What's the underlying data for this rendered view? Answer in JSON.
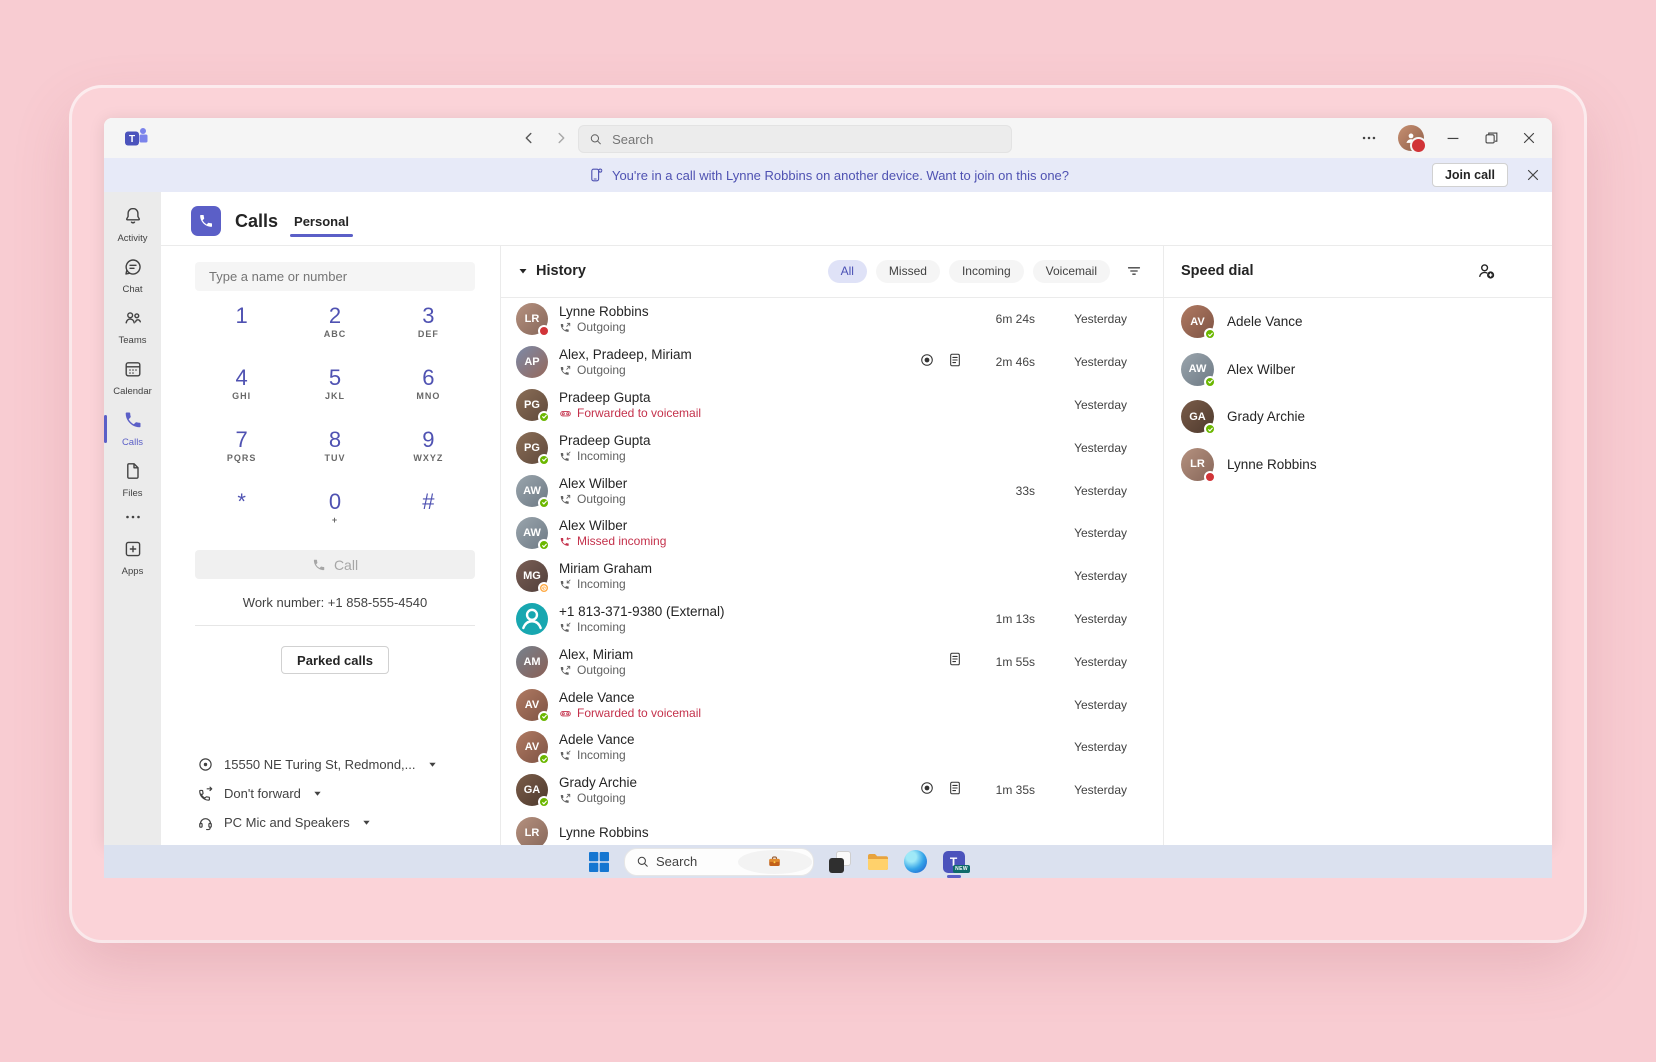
{
  "colors": {
    "accent": "#5b5fc7",
    "accent_dark": "#4f52b2",
    "danger": "#c4314b",
    "presence_available": "#6bb700",
    "presence_busy": "#d13438",
    "presence_away": "#ffaa44",
    "banner_bg": "#e7eaf8",
    "external_avatar": "#18a7b0",
    "selected_pill_bg": "#dfe2f7"
  },
  "titlebar": {
    "search_placeholder": "Search"
  },
  "banner": {
    "text": "You're in a call with Lynne Robbins on another device. Want to join on this one?",
    "join_label": "Join call"
  },
  "sidebar": {
    "items": [
      {
        "id": "activity",
        "label": "Activity",
        "active": false
      },
      {
        "id": "chat",
        "label": "Chat",
        "active": false
      },
      {
        "id": "teams",
        "label": "Teams",
        "active": false
      },
      {
        "id": "calendar",
        "label": "Calendar",
        "active": false
      },
      {
        "id": "calls",
        "label": "Calls",
        "active": true
      },
      {
        "id": "files",
        "label": "Files",
        "active": false
      },
      {
        "id": "more",
        "label": "",
        "active": false
      },
      {
        "id": "apps",
        "label": "Apps",
        "active": false
      }
    ]
  },
  "calls": {
    "title": "Calls",
    "tab": "Personal",
    "input_placeholder": "Type a name or number",
    "dialpad": [
      {
        "digit": "1",
        "sub": ""
      },
      {
        "digit": "2",
        "sub": "ABC"
      },
      {
        "digit": "3",
        "sub": "DEF"
      },
      {
        "digit": "4",
        "sub": "GHI"
      },
      {
        "digit": "5",
        "sub": "JKL"
      },
      {
        "digit": "6",
        "sub": "MNO"
      },
      {
        "digit": "7",
        "sub": "PQRS"
      },
      {
        "digit": "8",
        "sub": "TUV"
      },
      {
        "digit": "9",
        "sub": "WXYZ"
      },
      {
        "digit": "*",
        "sub": ""
      },
      {
        "digit": "0",
        "sub": "+"
      },
      {
        "digit": "#",
        "sub": ""
      }
    ],
    "call_label": "Call",
    "work_number": "Work number: +1 858-555-4540",
    "parked_label": "Parked calls",
    "location": "15550 NE Turing St, Redmond,...",
    "forwarding": "Don't forward",
    "audio_device": "PC Mic and Speakers"
  },
  "history": {
    "title": "History",
    "filters": [
      "All",
      "Missed",
      "Incoming",
      "Voicemail"
    ],
    "active_filter": "All",
    "rows": [
      {
        "name": "Lynne Robbins",
        "status": "Outgoing",
        "type": "outgoing",
        "duration": "6m 24s",
        "date": "Yesterday",
        "record": false,
        "transcript": false,
        "presence": "busy",
        "avatar": [
          "#b5917f",
          "#87675a"
        ]
      },
      {
        "name": "Alex, Pradeep, Miriam",
        "status": "Outgoing",
        "type": "outgoing",
        "duration": "2m 46s",
        "date": "Yesterday",
        "record": true,
        "transcript": true,
        "presence": "none",
        "avatar": [
          "#7c8aa8",
          "#96685a"
        ]
      },
      {
        "name": "Pradeep Gupta",
        "status": "Forwarded to voicemail",
        "type": "voicemail",
        "duration": "",
        "date": "Yesterday",
        "record": false,
        "transcript": false,
        "presence": "available",
        "avatar": [
          "#8a6e57",
          "#60493b"
        ]
      },
      {
        "name": "Pradeep Gupta",
        "status": "Incoming",
        "type": "incoming",
        "duration": "",
        "date": "Yesterday",
        "record": false,
        "transcript": false,
        "presence": "available",
        "avatar": [
          "#8a6e57",
          "#60493b"
        ]
      },
      {
        "name": "Alex Wilber",
        "status": "Outgoing",
        "type": "outgoing",
        "duration": "33s",
        "date": "Yesterday",
        "record": false,
        "transcript": false,
        "presence": "available",
        "avatar": [
          "#9aa5ad",
          "#6e7a85"
        ]
      },
      {
        "name": "Alex Wilber",
        "status": "Missed incoming",
        "type": "missed",
        "duration": "",
        "date": "Yesterday",
        "record": false,
        "transcript": false,
        "presence": "available",
        "avatar": [
          "#9aa5ad",
          "#6e7a85"
        ]
      },
      {
        "name": "Miriam Graham",
        "status": "Incoming",
        "type": "incoming",
        "duration": "",
        "date": "Yesterday",
        "record": false,
        "transcript": false,
        "presence": "away",
        "avatar": [
          "#7a5f55",
          "#503e3a"
        ]
      },
      {
        "name": "+1 813-371-9380 (External)",
        "status": "Incoming",
        "type": "incoming",
        "duration": "1m 13s",
        "date": "Yesterday",
        "record": false,
        "transcript": false,
        "presence": "none",
        "avatar": "external"
      },
      {
        "name": "Alex, Miriam",
        "status": "Outgoing",
        "type": "outgoing",
        "duration": "1m 55s",
        "date": "Yesterday",
        "record": false,
        "transcript": true,
        "presence": "none",
        "avatar": [
          "#76828e",
          "#8a5f55"
        ]
      },
      {
        "name": "Adele Vance",
        "status": "Forwarded to voicemail",
        "type": "voicemail",
        "duration": "",
        "date": "Yesterday",
        "record": false,
        "transcript": false,
        "presence": "available",
        "avatar": [
          "#b07a62",
          "#7e5344"
        ]
      },
      {
        "name": "Adele Vance",
        "status": "Incoming",
        "type": "incoming",
        "duration": "",
        "date": "Yesterday",
        "record": false,
        "transcript": false,
        "presence": "available",
        "avatar": [
          "#b07a62",
          "#7e5344"
        ]
      },
      {
        "name": "Grady Archie",
        "status": "Outgoing",
        "type": "outgoing",
        "duration": "1m 35s",
        "date": "Yesterday",
        "record": true,
        "transcript": true,
        "presence": "available",
        "avatar": [
          "#7a5c49",
          "#4e3a2e"
        ]
      },
      {
        "name": "Lynne Robbins",
        "status": "",
        "type": "",
        "duration": "",
        "date": "",
        "record": false,
        "transcript": false,
        "presence": "none",
        "avatar": [
          "#b5917f",
          "#87675a"
        ],
        "partial": true
      }
    ]
  },
  "speed_dial": {
    "title": "Speed dial",
    "contacts": [
      {
        "name": "Adele Vance",
        "presence": "available",
        "avatar": [
          "#b07a62",
          "#7e5344"
        ]
      },
      {
        "name": "Alex Wilber",
        "presence": "available",
        "avatar": [
          "#9aa5ad",
          "#6e7a85"
        ]
      },
      {
        "name": "Grady Archie",
        "presence": "available",
        "avatar": [
          "#7a5c49",
          "#4e3a2e"
        ]
      },
      {
        "name": "Lynne Robbins",
        "presence": "busy",
        "avatar": [
          "#b5917f",
          "#87675a"
        ]
      }
    ]
  },
  "taskbar": {
    "search_label": "Search"
  }
}
